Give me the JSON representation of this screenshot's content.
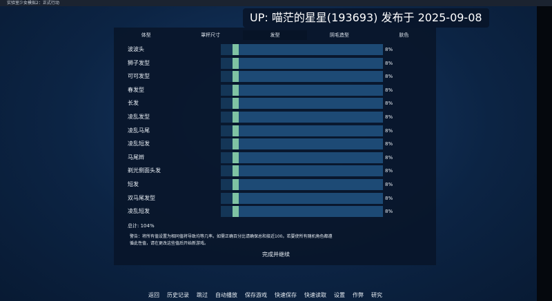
{
  "window_title": "实验室少女模拟2：正式行动",
  "banner": "UP: 喵茫的星星(193693) 发布于 2025-09-08",
  "tabs": [
    "体型",
    "罩杯尺寸",
    "发型",
    "阴毛造型",
    "肤色"
  ],
  "rows": [
    {
      "label": "波波头",
      "percent": "8%"
    },
    {
      "label": "狮子发型",
      "percent": "8%"
    },
    {
      "label": "可可发型",
      "percent": "8%"
    },
    {
      "label": "春发型",
      "percent": "8%"
    },
    {
      "label": "长发",
      "percent": "8%"
    },
    {
      "label": "凌乱发型",
      "percent": "8%"
    },
    {
      "label": "凌乱马尾",
      "percent": "8%"
    },
    {
      "label": "凌乱短发",
      "percent": "8%"
    },
    {
      "label": "马尾辫",
      "percent": "8%"
    },
    {
      "label": "剃光侧面头发",
      "percent": "8%"
    },
    {
      "label": "短发",
      "percent": "8%"
    },
    {
      "label": "双马尾发型",
      "percent": "8%"
    },
    {
      "label": "凌乱短发",
      "percent": "8%"
    }
  ],
  "total": "总计: 104%",
  "warning": [
    "警告：将所有值设置为相同值将导致均等几率。如需正确百分比请确保总和接近100。若要使所有随机角色都遵",
    "循此性值，请在更改这些值后开始新游戏。"
  ],
  "continue_button": "完成并继续",
  "menu": [
    "返回",
    "历史记录",
    "跳过",
    "自动播放",
    "保存游戏",
    "快速保存",
    "快速读取",
    "设置",
    "作弊",
    "研究"
  ]
}
